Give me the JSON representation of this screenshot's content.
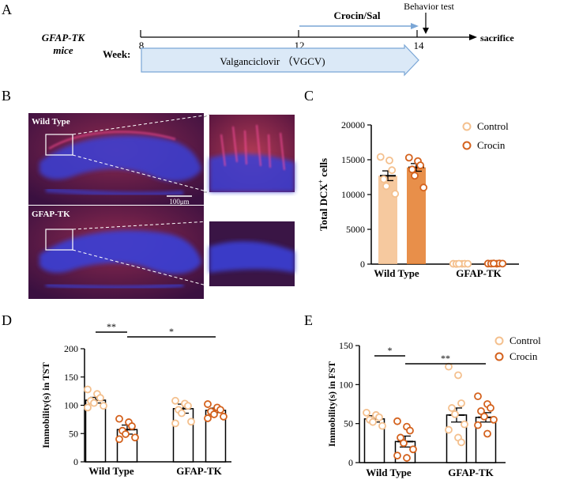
{
  "panels": {
    "A": {
      "letter": "A",
      "mouse_line1": "GFAP-TK",
      "mouse_line2": "mice",
      "week_label": "Week:",
      "weeks": [
        "8",
        "12",
        "14"
      ],
      "treatment": "Crocin/Sal",
      "behavior": "Behavior test",
      "endpoint": "sacrifice",
      "drug": "Valganciclovir （VGCV)"
    },
    "B": {
      "letter": "B",
      "top_label": "Wild Type",
      "bottom_label": "GFAP-TK",
      "scale": "100μm"
    },
    "C": {
      "letter": "C"
    },
    "D": {
      "letter": "D"
    },
    "E": {
      "letter": "E"
    }
  },
  "colors": {
    "control": "#f4c08e",
    "crocin": "#e47b2a",
    "crocin_dark": "#d4621e",
    "arrow_fill": "#dbe9f7",
    "arrow_stroke": "#7aa6d6",
    "dapi": "#3b3fd6",
    "dcx": "#c23a3a",
    "bg_tissue": "#2a1440"
  },
  "chart_data": [
    {
      "type": "bar",
      "panel": "C",
      "categories": [
        "Wild Type",
        "GFAP-TK"
      ],
      "series": [
        {
          "name": "Control",
          "values": [
            12700,
            50
          ],
          "sem": [
            700,
            20
          ],
          "points": [
            [
              15400,
              14900,
              13500,
              12200,
              11200,
              10100
            ],
            [
              50,
              40,
              60,
              30,
              55,
              45
            ]
          ]
        },
        {
          "name": "Crocin",
          "values": [
            13900,
            80
          ],
          "sem": [
            550,
            25
          ],
          "points": [
            [
              15300,
              14800,
              14200,
              13600,
              12700,
              11000
            ],
            [
              80,
              60,
              100,
              70,
              90,
              75
            ]
          ]
        }
      ],
      "ylabel_main": "Total DCX",
      "ylabel_sup": "+",
      "ylabel_end": " cells",
      "ylim": [
        0,
        20000
      ],
      "yticks": [
        "0",
        "5000",
        "10000",
        "15000",
        "20000"
      ],
      "legend": [
        "Control",
        "Crocin"
      ]
    },
    {
      "type": "bar",
      "panel": "D",
      "categories": [
        "Wild Type",
        "GFAP-TK"
      ],
      "series": [
        {
          "name": "Control",
          "values": [
            109,
            94
          ],
          "sem": [
            5,
            8
          ],
          "points": [
            [
              128,
              120,
              113,
              108,
              104,
              99,
              96
            ],
            [
              108,
              103,
              99,
              92,
              86,
              71,
              68
            ]
          ]
        },
        {
          "name": "Crocin",
          "values": [
            57,
            91
          ],
          "sem": [
            8,
            4
          ],
          "points": [
            [
              76,
              70,
              63,
              55,
              49,
              43,
              40
            ],
            [
              102,
              96,
              92,
              89,
              84,
              80,
              77
            ]
          ]
        }
      ],
      "ylabel": "Immobility(s) in TST",
      "ylim": [
        0,
        200
      ],
      "yticks": [
        "0",
        "50",
        "100",
        "150",
        "200"
      ],
      "significance": [
        {
          "label": "**",
          "from": "Wild Type Control",
          "to": "Wild Type Crocin"
        },
        {
          "label": "*",
          "from": "Wild Type Crocin",
          "to": "GFAP-TK Crocin"
        }
      ]
    },
    {
      "type": "bar",
      "panel": "E",
      "categories": [
        "Wild Type",
        "GFAP-TK"
      ],
      "series": [
        {
          "name": "Control",
          "values": [
            56,
            61
          ],
          "sem": [
            4,
            9
          ],
          "points": [
            [
              64,
              61,
              58,
              55,
              52,
              47
            ],
            [
              123,
              112,
              76,
              70,
              62,
              49,
              42,
              32,
              26
            ]
          ]
        },
        {
          "name": "Crocin",
          "values": [
            27,
            58
          ],
          "sem": [
            7,
            6
          ],
          "points": [
            [
              53,
              46,
              41,
              32,
              25,
              17,
              9,
              6
            ],
            [
              85,
              75,
              70,
              66,
              59,
              55,
              48,
              37
            ]
          ]
        }
      ],
      "ylabel": "Immobility(s) in FST",
      "ylim": [
        0,
        150
      ],
      "yticks": [
        "0",
        "50",
        "100",
        "150"
      ],
      "legend": [
        "Control",
        "Crocin"
      ],
      "significance": [
        {
          "label": "*",
          "from": "Wild Type Control",
          "to": "Wild Type Crocin"
        },
        {
          "label": "**",
          "from": "Wild Type Crocin",
          "to": "GFAP-TK Crocin"
        }
      ]
    }
  ]
}
